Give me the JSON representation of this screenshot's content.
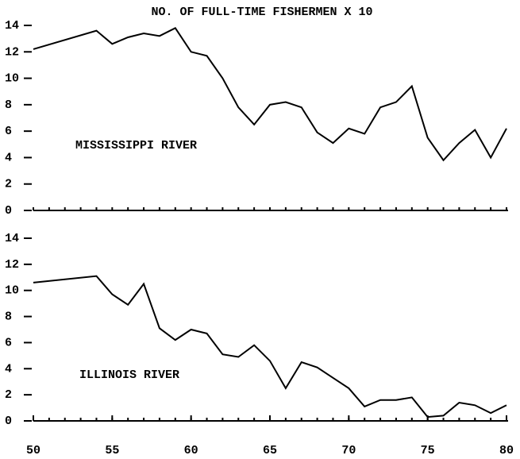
{
  "chart_data": [
    {
      "type": "line",
      "title": "NO. OF FULL-TIME FISHERMEN X 10",
      "annotation": "MISSISSIPPI RIVER",
      "x": [
        50,
        54,
        55,
        56,
        57,
        58,
        59,
        60,
        61,
        62,
        63,
        64,
        65,
        66,
        67,
        68,
        69,
        70,
        71,
        72,
        73,
        74,
        75,
        76,
        77,
        78,
        79,
        80
      ],
      "values": [
        12.2,
        13.6,
        12.6,
        13.1,
        13.4,
        13.2,
        13.8,
        12.0,
        11.7,
        10.0,
        7.8,
        6.5,
        8.0,
        8.2,
        7.8,
        5.9,
        5.1,
        6.2,
        5.8,
        7.8,
        8.2,
        9.4,
        5.5,
        3.8,
        5.1,
        6.1,
        4.0,
        6.2
      ],
      "xlim": [
        50,
        80
      ],
      "xticks_minor": [
        50,
        51,
        52,
        53,
        54,
        55,
        56,
        57,
        58,
        59,
        60,
        61,
        62,
        63,
        64,
        65,
        66,
        67,
        68,
        69,
        70,
        71,
        72,
        73,
        74,
        75,
        76,
        77,
        78,
        79,
        80
      ],
      "ylim": [
        0,
        14
      ],
      "yticks": [
        0,
        2,
        4,
        6,
        8,
        10,
        12,
        14
      ],
      "color": "#000000"
    },
    {
      "type": "line",
      "annotation": "ILLINOIS RIVER",
      "x": [
        50,
        54,
        55,
        56,
        57,
        58,
        59,
        60,
        61,
        62,
        63,
        64,
        65,
        66,
        67,
        68,
        69,
        70,
        71,
        72,
        73,
        74,
        75,
        76,
        77,
        78,
        79,
        80
      ],
      "values": [
        10.6,
        11.1,
        9.7,
        8.9,
        10.5,
        7.1,
        6.2,
        7.0,
        6.7,
        5.1,
        4.9,
        5.8,
        4.6,
        2.5,
        4.5,
        4.1,
        3.3,
        2.5,
        1.1,
        1.6,
        1.6,
        1.8,
        0.3,
        0.4,
        1.4,
        1.2,
        0.6,
        1.2
      ],
      "xlim": [
        50,
        80
      ],
      "xticks": [
        50,
        55,
        60,
        65,
        70,
        75,
        80
      ],
      "xticks_minor": [
        50,
        51,
        52,
        53,
        54,
        55,
        56,
        57,
        58,
        59,
        60,
        61,
        62,
        63,
        64,
        65,
        66,
        67,
        68,
        69,
        70,
        71,
        72,
        73,
        74,
        75,
        76,
        77,
        78,
        79,
        80
      ],
      "ylim": [
        0,
        14
      ],
      "yticks": [
        0,
        2,
        4,
        6,
        8,
        10,
        12,
        14
      ],
      "color": "#000000"
    }
  ]
}
